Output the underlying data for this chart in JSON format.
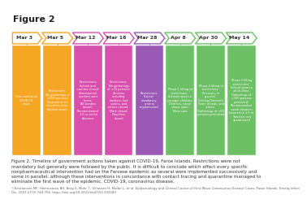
{
  "title": "Figure 2",
  "dates": [
    "Mar 3",
    "Mar 5",
    "Mar 12",
    "Mar 16",
    "Mar 28",
    "Apr 8",
    "Apr 30",
    "May 14"
  ],
  "arrow_edge_colors": [
    "#F5A623",
    "#F5A623",
    "#D94FAC",
    "#D94FAC",
    "#9B59B6",
    "#6DC066",
    "#6DC066",
    "#6DC066"
  ],
  "box_colors": [
    "#F5A623",
    "#F5A623",
    "#D94FAC",
    "#D94FAC",
    "#9B59B6",
    "#6DC066",
    "#6DC066",
    "#6DC066"
  ],
  "box_texts": [
    "First confirmed\nCOVID-19\ncases",
    "Restrictions:\nNo gatherings of\n>600 persons;\nQuarantine for\ntravellers from\nhighest zones",
    "Restrictions:\nSchool and\ncantina closed;\nNonessential\nworkers sent\nhome;\nAll borders\nclosed;\nRecommended\n1.5 m social\ndistance",
    "Restrictions:\nNo gatherings\nof >10 persons;\nServices\nincluding\nbarbors, hair\nsalons, and\nothers closed;\nMark closed;\nChurches\nclosed",
    "Restrictions:\nStricter\nmandatory\ncriteria\nimplemented",
    "Phase 1 lifting of\nrestrictions:\nSchools open to\nyounger children;\nDentists, some\nshops open;\nMore care",
    "Phase 2 lifting of\nrestrictions:\nRecovery in\nprocess;\nVisiting Denmark,\nFaroe Islands, and\nothers;\nGatherings of <50\npersons permitted",
    "Phase 3 lifting\nrestrictions:\nSchool open to\nall children;\nGatherings of\n>100 persons\npermitted;\nRecommended\nsocial distance\nlowered to 1.5 m;\nTravelers not\nquarantined"
  ],
  "caption": "Figure 2. Timeline of government actions taken against COVID-19, Faroe Islands. Restrictions were not\nmandatory but generally were followed by the public. It is difficult to conclude which effect every specific\nnonpharmaceutical intervention had on the Faroese epidemic as several were implemented successively and\nsome in parallel, although these interventions in concordance with contact tracing and quarantine managed to\neliminate the first wave of the epidemic. COVID-19, coronavirus disease.",
  "reference": "©Kristiansen MF, Heimustovu BH, Borg S, Mohr T, Gillasson H, Moller L, et al. Epidemiology and Clinical Course of First Wave Coronavirus Disease Cases, Faroe Islands. Emerg Infect\nDis. 2021;27(3):749-758. https://doi.org/10.3201/eid2703.202589",
  "background_color": "#ffffff"
}
